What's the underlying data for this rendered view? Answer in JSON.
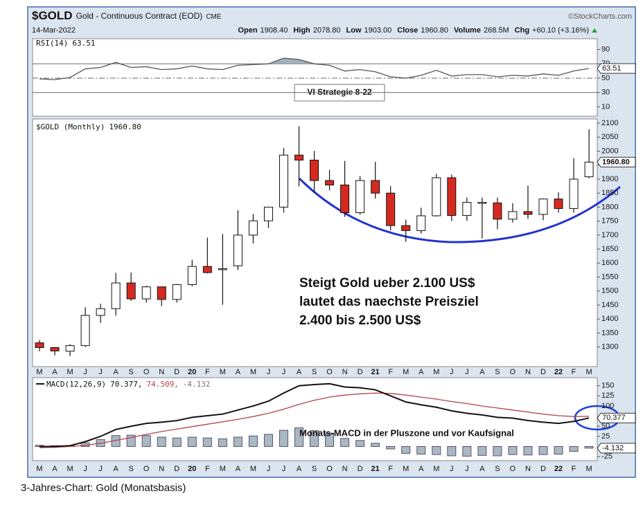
{
  "header": {
    "symbol": "$GOLD",
    "name": "Gold - Continuous Contract (EOD)",
    "exchange": "CME",
    "source": "©StockCharts.com",
    "date": "14-Mar-2022",
    "quote": [
      {
        "label": "Open",
        "value": "1908.40"
      },
      {
        "label": "High",
        "value": "2078.80"
      },
      {
        "label": "Low",
        "value": "1903.00"
      },
      {
        "label": "Close",
        "value": "1960.80"
      },
      {
        "label": "Volume",
        "value": "268.5M"
      },
      {
        "label": "Chg",
        "value": "+60.10 (+3.16%)"
      }
    ]
  },
  "caption": "3-Jahres-Chart: Gold (Monatsbasis)",
  "chart_data": [
    {
      "type": "line",
      "title": "RSI(14)",
      "color": "#555555",
      "fill": "#9fb0bf",
      "ylim": [
        -3,
        105
      ],
      "yticks": [
        90,
        70,
        50,
        30,
        10
      ],
      "reference_lines": [
        70,
        50,
        30
      ],
      "values": [
        49,
        48,
        51,
        63,
        65,
        72,
        65,
        66,
        62,
        63,
        67,
        63,
        62,
        68,
        69,
        70,
        78,
        76,
        70,
        68,
        60,
        62,
        59,
        52,
        50,
        54,
        61,
        53,
        55,
        55,
        52,
        54,
        53,
        56,
        54,
        60,
        63.51
      ],
      "annotation": "VI Strategie 8-22"
    },
    {
      "type": "candlestick",
      "title": "$GOLD (Monthly)",
      "last_label": "1960.80",
      "up_color": "#ffffff",
      "down_color": "#d42a20",
      "ylim": [
        1230,
        2115
      ],
      "yticks": [
        2100,
        2050,
        2000,
        1950,
        1900,
        1850,
        1800,
        1750,
        1700,
        1650,
        1600,
        1550,
        1500,
        1450,
        1400,
        1350,
        1300
      ],
      "categories": [
        "M",
        "A",
        "M",
        "J",
        "J",
        "A",
        "S",
        "O",
        "N",
        "D",
        "20",
        "F",
        "M",
        "A",
        "M",
        "J",
        "J",
        "A",
        "S",
        "O",
        "N",
        "D",
        "21",
        "F",
        "M",
        "A",
        "M",
        "J",
        "J",
        "A",
        "S",
        "O",
        "N",
        "D",
        "22",
        "F",
        "M"
      ],
      "open": [
        1315,
        1298,
        1285,
        1305,
        1413,
        1437,
        1529,
        1472,
        1515,
        1470,
        1523,
        1588,
        1580,
        1590,
        1700,
        1751,
        1800,
        1986,
        1968,
        1895,
        1879,
        1780,
        1895,
        1850,
        1734,
        1716,
        1769,
        1905,
        1770,
        1817,
        1815,
        1757,
        1784,
        1774,
        1829,
        1795,
        1908.4
      ],
      "high": [
        1325,
        1300,
        1310,
        1442,
        1455,
        1565,
        1566,
        1519,
        1516,
        1525,
        1612,
        1691,
        1704,
        1789,
        1775,
        1800,
        2012,
        2089,
        2001,
        1933,
        1965,
        1911,
        1962,
        1875,
        1755,
        1798,
        1919,
        1916,
        1834,
        1834,
        1834,
        1814,
        1877,
        1831,
        1853,
        1975,
        2078.8
      ],
      "low": [
        1285,
        1270,
        1268,
        1300,
        1386,
        1412,
        1465,
        1459,
        1446,
        1459,
        1517,
        1563,
        1451,
        1575,
        1670,
        1725,
        1780,
        1874,
        1851,
        1860,
        1765,
        1773,
        1830,
        1717,
        1676,
        1705,
        1766,
        1750,
        1751,
        1688,
        1721,
        1745,
        1758,
        1753,
        1780,
        1780,
        1903
      ],
      "close": [
        1298,
        1286,
        1305,
        1413,
        1437,
        1529,
        1472,
        1515,
        1470,
        1523,
        1588,
        1566,
        1580,
        1700,
        1751,
        1800,
        1986,
        1968,
        1895,
        1879,
        1780,
        1895,
        1850,
        1734,
        1716,
        1769,
        1905,
        1770,
        1817,
        1817,
        1757,
        1784,
        1774,
        1829,
        1795,
        1900,
        1960.8
      ],
      "annotation": [
        "Steigt Gold ueber 2.100 US$",
        "lautet das naechste Preisziel",
        "2.400 bis 2.500 US$"
      ]
    },
    {
      "type": "macd",
      "title": "MACD(12,26,9)",
      "legend_values": [
        "70.377,",
        "74.509,",
        "-4.132"
      ],
      "ylim": [
        -35,
        170
      ],
      "yticks": [
        150,
        125,
        100,
        75,
        50,
        25,
        -25
      ],
      "macd": {
        "color": "#111111",
        "values": [
          0,
          0,
          2,
          12,
          25,
          42,
          50,
          57,
          60,
          64,
          72,
          76,
          80,
          90,
          100,
          112,
          132,
          150,
          153,
          155,
          147,
          145,
          140,
          125,
          110,
          103,
          97,
          88,
          82,
          78,
          72,
          70,
          64,
          60,
          57,
          62,
          70.377
        ]
      },
      "signal": {
        "color": "#b5404a",
        "values": [
          -3,
          -2,
          0,
          3,
          8,
          15,
          22,
          30,
          37,
          43,
          49,
          55,
          61,
          67,
          74,
          82,
          92,
          104,
          114,
          122,
          127,
          130,
          132,
          131,
          127,
          122,
          117,
          111,
          106,
          100,
          95,
          90,
          85,
          80,
          76,
          74,
          74.509
        ]
      },
      "histogram": {
        "color": "#aab8c4",
        "values": [
          3,
          2,
          2,
          9,
          17,
          27,
          28,
          27,
          23,
          21,
          23,
          21,
          19,
          23,
          26,
          30,
          40,
          46,
          39,
          33,
          20,
          15,
          8,
          -6,
          -17,
          -19,
          -20,
          -23,
          -24,
          -22,
          -23,
          -20,
          -21,
          -20,
          -19,
          -12,
          -4.132
        ]
      },
      "annotation": "Monats-MACD in der Pluszone und vor Kaufsignal"
    }
  ]
}
